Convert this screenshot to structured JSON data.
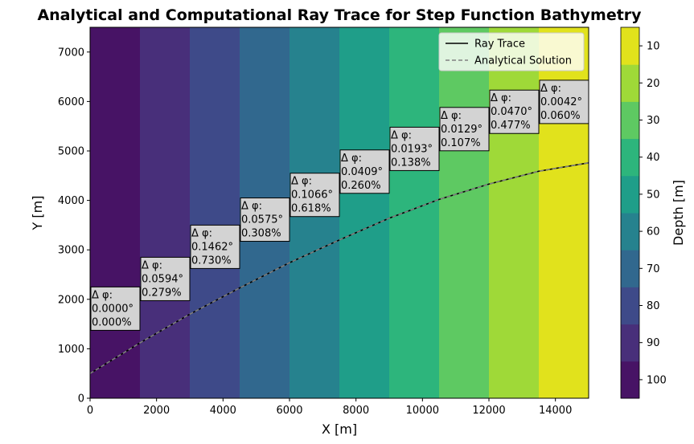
{
  "chart_data": {
    "type": "line",
    "title": "Analytical and Computational Ray Trace for Step Function Bathymetry",
    "xlabel": "X [m]",
    "ylabel": "Y [m]",
    "xlim": [
      0,
      15000
    ],
    "ylim": [
      0,
      7500
    ],
    "x_ticks": [
      0,
      2000,
      4000,
      6000,
      8000,
      10000,
      12000,
      14000
    ],
    "y_ticks": [
      0,
      1000,
      2000,
      3000,
      4000,
      5000,
      6000,
      7000
    ],
    "grid": false,
    "legend_position": "top-right",
    "background_bands": {
      "x_edges": [
        0,
        1500,
        3000,
        4500,
        6000,
        7500,
        9000,
        10500,
        12000,
        13500,
        15000
      ],
      "depth": [
        100,
        90,
        80,
        70,
        60,
        50,
        40,
        30,
        20,
        10
      ]
    },
    "series": [
      {
        "name": "Ray Trace",
        "color": "#000000",
        "style": "solid",
        "x": [
          0,
          1500,
          3000,
          4500,
          6000,
          7500,
          9000,
          10500,
          12000,
          13500,
          15000
        ],
        "y": [
          500,
          1120,
          1700,
          2230,
          2740,
          3200,
          3640,
          4020,
          4330,
          4590,
          4760
        ]
      },
      {
        "name": "Analytical Solution",
        "color": "#808080",
        "style": "dashed",
        "x": [
          0,
          1500,
          3000,
          4500,
          6000,
          7500,
          9000,
          10500,
          12000,
          13500,
          15000
        ],
        "y": [
          500,
          1120,
          1700,
          2230,
          2740,
          3200,
          3640,
          4020,
          4330,
          4590,
          4760
        ]
      }
    ],
    "annotations": [
      {
        "x": 0,
        "y": 2250,
        "lines": [
          "Δ φ:",
          "0.0000°",
          "0.000%"
        ]
      },
      {
        "x": 1500,
        "y": 2850,
        "lines": [
          "Δ φ:",
          "0.0594°",
          "0.279%"
        ]
      },
      {
        "x": 3000,
        "y": 3500,
        "lines": [
          "Δ φ:",
          "0.1462°",
          "0.730%"
        ]
      },
      {
        "x": 4500,
        "y": 4050,
        "lines": [
          "Δ φ:",
          "0.0575°",
          "0.308%"
        ]
      },
      {
        "x": 6000,
        "y": 4550,
        "lines": [
          "Δ φ:",
          "0.1066°",
          "0.618%"
        ]
      },
      {
        "x": 7500,
        "y": 5020,
        "lines": [
          "Δ φ:",
          "0.0409°",
          "0.260%"
        ]
      },
      {
        "x": 9000,
        "y": 5480,
        "lines": [
          "Δ φ:",
          "0.0193°",
          "0.138%"
        ]
      },
      {
        "x": 10500,
        "y": 5880,
        "lines": [
          "Δ φ:",
          "0.0129°",
          "0.107%"
        ]
      },
      {
        "x": 12000,
        "y": 6230,
        "lines": [
          "Δ φ:",
          "0.0470°",
          "0.477%"
        ]
      },
      {
        "x": 13500,
        "y": 6430,
        "lines": [
          "Δ φ:",
          "0.0042°",
          "0.060%"
        ]
      }
    ],
    "colorbar": {
      "label": "Depth [m]",
      "range": [
        105,
        5
      ],
      "ticks": [
        10,
        20,
        30,
        40,
        50,
        60,
        70,
        80,
        90,
        100
      ],
      "levels": [
        {
          "low": 95,
          "high": 105,
          "color": "#471365"
        },
        {
          "low": 85,
          "high": 95,
          "color": "#482f7a"
        },
        {
          "low": 75,
          "high": 85,
          "color": "#3e4a89"
        },
        {
          "low": 65,
          "high": 75,
          "color": "#31688e"
        },
        {
          "low": 55,
          "high": 65,
          "color": "#26828e"
        },
        {
          "low": 45,
          "high": 55,
          "color": "#1f9e89"
        },
        {
          "low": 35,
          "high": 45,
          "color": "#2db57c"
        },
        {
          "low": 25,
          "high": 35,
          "color": "#5ec962"
        },
        {
          "low": 15,
          "high": 25,
          "color": "#9fd938"
        },
        {
          "low": 5,
          "high": 15,
          "color": "#e1e21c"
        }
      ]
    }
  }
}
